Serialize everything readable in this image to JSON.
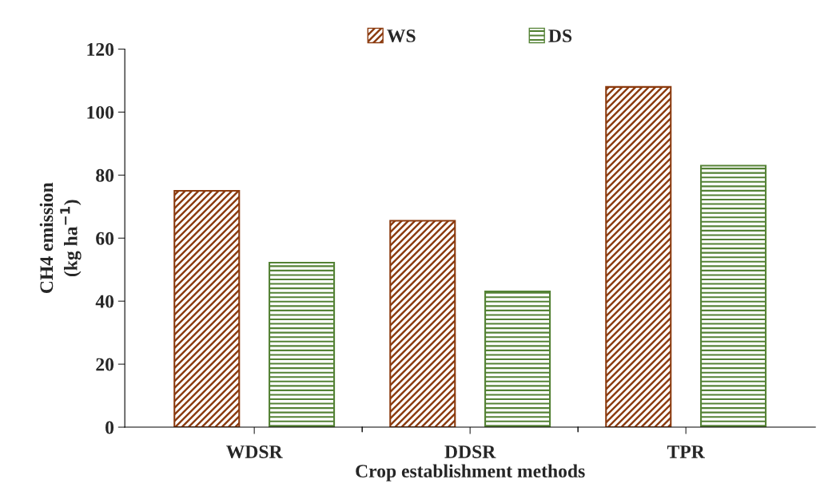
{
  "chart_data": {
    "type": "bar",
    "xlabel": "Crop establishment methods",
    "ylabel": "CH4 emission\n(kg ha$^{−1}$)",
    "categories": [
      "WDSR",
      "DDSR",
      "TPR"
    ],
    "series": [
      {
        "name": "WS",
        "color": "#8b3a0e",
        "values": [
          75,
          65.5,
          108
        ]
      },
      {
        "name": "DS",
        "color": "#548235",
        "values": [
          52.2,
          43.1,
          83
        ]
      }
    ],
    "ylim": [
      0,
      120
    ],
    "yticks": [
      0,
      20,
      40,
      60,
      80,
      100,
      120
    ],
    "grid": false,
    "legend": "top"
  }
}
